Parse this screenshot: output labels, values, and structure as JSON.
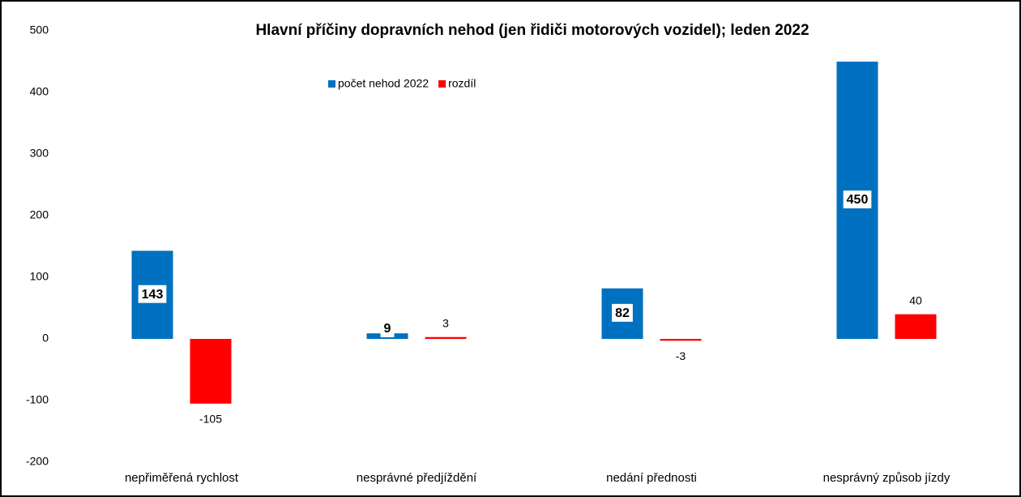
{
  "chart_data": {
    "type": "bar",
    "title": "Hlavní příčiny dopravních nehod (jen řidiči motorových vozidel); leden 2022",
    "categories": [
      "nepřiměřená rychlost",
      "nesprávné předjíždění",
      "nedání přednosti",
      "nesprávný způsob jízdy"
    ],
    "series": [
      {
        "name": "počet nehod 2022",
        "color": "#0070c0",
        "values": [
          143,
          9,
          82,
          450
        ]
      },
      {
        "name": "rozdíl",
        "color": "#ff0000",
        "values": [
          -105,
          3,
          -3,
          40
        ]
      }
    ],
    "ylim": [
      -200,
      500
    ],
    "yticks": [
      -200,
      -100,
      0,
      100,
      200,
      300,
      400,
      500
    ],
    "grid": false,
    "legend": "top"
  }
}
